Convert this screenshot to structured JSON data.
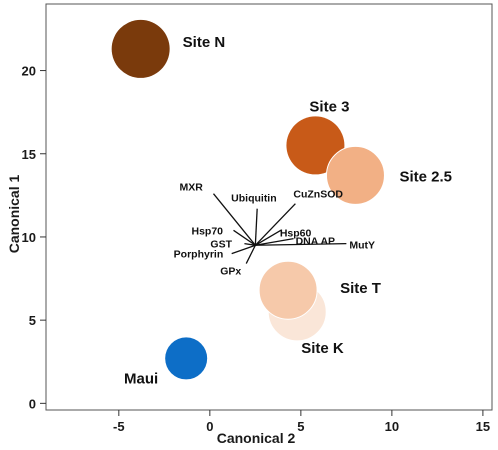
{
  "chart_data": {
    "type": "scatter",
    "xlabel": "Canonical 2",
    "ylabel": "Canonical 1",
    "xlim": [
      -9,
      15.5
    ],
    "ylim": [
      -0.4,
      24
    ],
    "xticks": [
      -5,
      0,
      5,
      10,
      15
    ],
    "yticks": [
      0,
      5,
      10,
      15,
      20
    ],
    "grid": false,
    "sites": [
      {
        "label": "Site N",
        "x": -3.8,
        "y": 21.3,
        "color": "#7a3a0c"
      },
      {
        "label": "Site 3",
        "x": 5.8,
        "y": 15.5,
        "color": "#c85a18"
      },
      {
        "label": "Site 2.5",
        "x": 8.0,
        "y": 13.7,
        "color": "#f2b085"
      },
      {
        "label": "Site K",
        "x": 4.8,
        "y": 5.5,
        "color": "#fae6d8"
      },
      {
        "label": "Site T",
        "x": 4.3,
        "y": 6.8,
        "color": "#f6c9aa"
      },
      {
        "label": "Maui",
        "x": -1.3,
        "y": 2.7,
        "color": "#0d6ec7"
      }
    ],
    "biplot_origin": {
      "x": 2.5,
      "y": 9.5
    },
    "vectors": [
      {
        "label": "MXR",
        "x": 0.2,
        "y": 12.6
      },
      {
        "label": "Ubiquitin",
        "x": 2.6,
        "y": 11.7
      },
      {
        "label": "CuZnSOD",
        "x": 4.7,
        "y": 12.0
      },
      {
        "label": "Hsp70",
        "x": 1.3,
        "y": 10.4
      },
      {
        "label": "Hsp60",
        "x": 3.9,
        "y": 10.4
      },
      {
        "label": "DNA AP",
        "x": 4.6,
        "y": 9.9
      },
      {
        "label": "GST",
        "x": 1.9,
        "y": 9.6
      },
      {
        "label": "MutY",
        "x": 7.5,
        "y": 9.6
      },
      {
        "label": "Porphyrin",
        "x": 1.2,
        "y": 9.0
      },
      {
        "label": "GPx",
        "x": 2.0,
        "y": 8.4
      }
    ]
  }
}
